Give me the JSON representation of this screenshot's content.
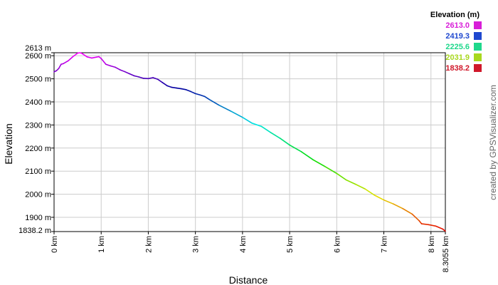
{
  "chart_data": {
    "type": "line",
    "xlabel": "Distance",
    "ylabel": "Elevation",
    "x_unit": "km",
    "y_unit": "m",
    "xlim": [
      0,
      8.3055
    ],
    "ylim": [
      1838.2,
      2613.0
    ],
    "x_ticks": [
      {
        "value": 0,
        "label": "0 km"
      },
      {
        "value": 1,
        "label": "1 km"
      },
      {
        "value": 2,
        "label": "2 km"
      },
      {
        "value": 3,
        "label": "3 km"
      },
      {
        "value": 4,
        "label": "4 km"
      },
      {
        "value": 5,
        "label": "5 km"
      },
      {
        "value": 6,
        "label": "6 km"
      },
      {
        "value": 7,
        "label": "7 km"
      },
      {
        "value": 8,
        "label": "8 km"
      },
      {
        "value": 8.3055,
        "label": "8.3055 km"
      }
    ],
    "y_ticks": [
      {
        "value": 1838.2,
        "label": "1838.2 m"
      },
      {
        "value": 1900,
        "label": "1900 m"
      },
      {
        "value": 2000,
        "label": "2000 m"
      },
      {
        "value": 2100,
        "label": "2100 m"
      },
      {
        "value": 2200,
        "label": "2200 m"
      },
      {
        "value": 2300,
        "label": "2300 m"
      },
      {
        "value": 2400,
        "label": "2400 m"
      },
      {
        "value": 2500,
        "label": "2500 m"
      },
      {
        "value": 2600,
        "label": "2600 m"
      },
      {
        "value": 2613,
        "label": "2613 m"
      }
    ],
    "grid": true,
    "legend": {
      "title": "Elevation (m)",
      "placement": "top-right",
      "entries": [
        {
          "label": "2613.0",
          "color": "#d81ed8"
        },
        {
          "label": "2419.3",
          "color": "#1f48cf"
        },
        {
          "label": "2225.6",
          "color": "#1fd88c"
        },
        {
          "label": "2031.9",
          "color": "#a8d81e"
        },
        {
          "label": "1838.2",
          "color": "#d0182a"
        }
      ]
    },
    "points": [
      [
        0.0,
        2530
      ],
      [
        0.05,
        2535
      ],
      [
        0.1,
        2545
      ],
      [
        0.15,
        2563
      ],
      [
        0.2,
        2566
      ],
      [
        0.3,
        2578
      ],
      [
        0.4,
        2596
      ],
      [
        0.5,
        2611
      ],
      [
        0.55,
        2613
      ],
      [
        0.6,
        2609
      ],
      [
        0.7,
        2595
      ],
      [
        0.8,
        2590
      ],
      [
        0.9,
        2594
      ],
      [
        0.95,
        2596
      ],
      [
        1.0,
        2588
      ],
      [
        1.1,
        2563
      ],
      [
        1.2,
        2556
      ],
      [
        1.3,
        2550
      ],
      [
        1.4,
        2539
      ],
      [
        1.5,
        2531
      ],
      [
        1.6,
        2522
      ],
      [
        1.7,
        2513
      ],
      [
        1.8,
        2508
      ],
      [
        1.9,
        2502
      ],
      [
        2.0,
        2501
      ],
      [
        2.1,
        2505
      ],
      [
        2.2,
        2498
      ],
      [
        2.3,
        2484
      ],
      [
        2.4,
        2470
      ],
      [
        2.5,
        2463
      ],
      [
        2.6,
        2460
      ],
      [
        2.7,
        2457
      ],
      [
        2.8,
        2453
      ],
      [
        2.9,
        2445
      ],
      [
        3.0,
        2436
      ],
      [
        3.1,
        2430
      ],
      [
        3.2,
        2423
      ],
      [
        3.3,
        2410
      ],
      [
        3.5,
        2386
      ],
      [
        3.75,
        2360
      ],
      [
        4.0,
        2333
      ],
      [
        4.2,
        2308
      ],
      [
        4.4,
        2294
      ],
      [
        4.6,
        2267
      ],
      [
        4.8,
        2242
      ],
      [
        5.0,
        2213
      ],
      [
        5.25,
        2184
      ],
      [
        5.5,
        2149
      ],
      [
        5.75,
        2120
      ],
      [
        6.0,
        2090
      ],
      [
        6.2,
        2062
      ],
      [
        6.4,
        2043
      ],
      [
        6.6,
        2023
      ],
      [
        6.8,
        1996
      ],
      [
        7.0,
        1975
      ],
      [
        7.2,
        1958
      ],
      [
        7.4,
        1938
      ],
      [
        7.6,
        1914
      ],
      [
        7.75,
        1885
      ],
      [
        7.8,
        1872
      ],
      [
        7.95,
        1868
      ],
      [
        8.1,
        1862
      ],
      [
        8.25,
        1849
      ],
      [
        8.3055,
        1840
      ]
    ]
  },
  "credit": "created by GPSVisualizer.com"
}
